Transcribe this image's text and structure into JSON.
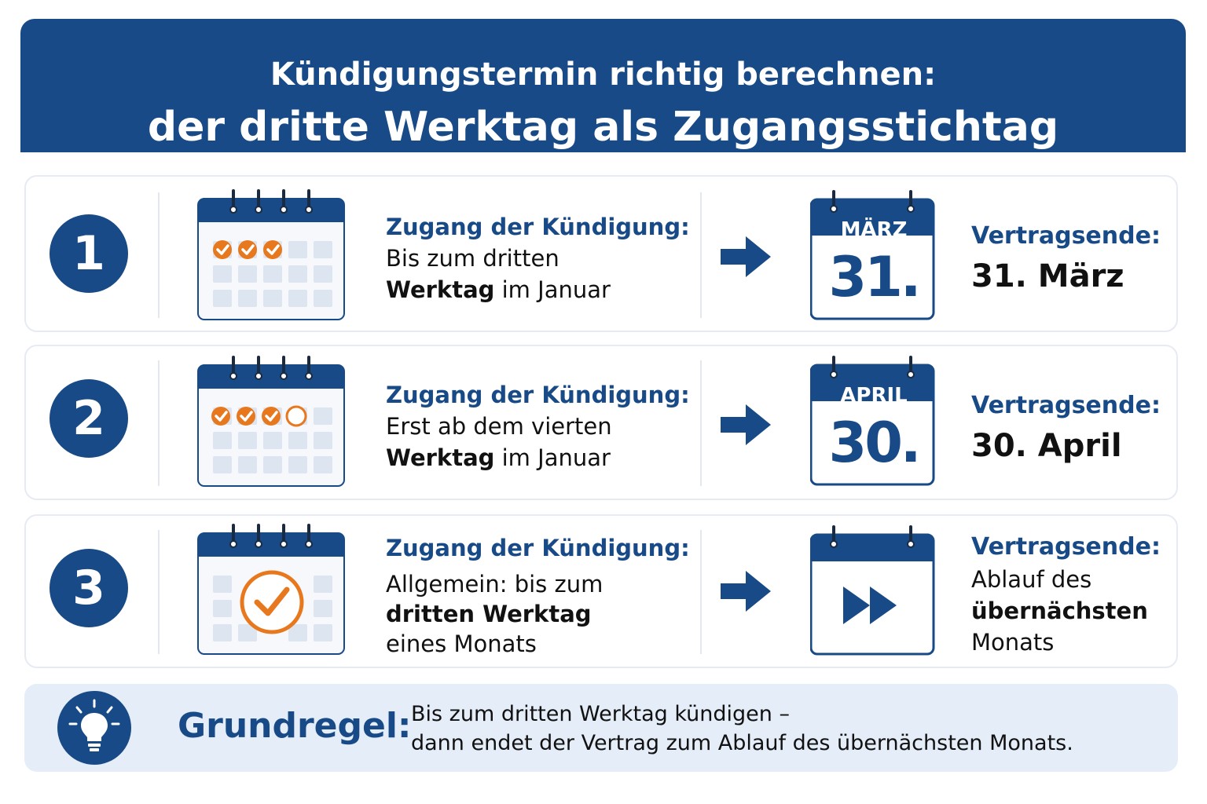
{
  "header": {
    "title_line1": "Kündigungstermin richtig berechnen:",
    "title_line2": "der dritte Werktag als Zugangsstichtag"
  },
  "rows": [
    {
      "number": "1",
      "access_heading": "Zugang der Kündigung:",
      "access_line1": "Bis zum dritten",
      "access_line2_bold": "Werktag",
      "access_line2_rest": " im Januar",
      "calendar_month": "MÄRZ",
      "calendar_day": "31.",
      "end_heading": "Vertragsende:",
      "end_value": "31. März",
      "checked_days": 3
    },
    {
      "number": "2",
      "access_heading": "Zugang der Kündigung:",
      "access_line1": "Erst ab dem vierten",
      "access_line2_bold": "Werktag",
      "access_line2_rest": " im Januar",
      "calendar_month": "APRIL",
      "calendar_day": "30.",
      "end_heading": "Vertragsende:",
      "end_value": "30. April",
      "checked_days": 3,
      "open_day": 1
    },
    {
      "number": "3",
      "access_heading": "Zugang der Kündigung:",
      "access_line1": "Allgemein: bis zum",
      "access_line2_bold": "dritten Werktag",
      "access_line3": "eines Monats",
      "end_heading": "Vertragsende:",
      "end_line1": "Ablauf des",
      "end_line2_bold": "übernächsten",
      "end_line3": "Monats"
    }
  ],
  "rule": {
    "title": "Grundregel:",
    "line1": "Bis zum dritten Werktag kündigen –",
    "line2": "dann endet der Vertrag zum Ablauf des übernächsten Monats."
  },
  "icons": {
    "row_calendar": "calendar-icon",
    "arrow": "arrow-right-icon",
    "fast_forward": "fast-forward-icon",
    "bulb": "lightbulb-icon"
  },
  "colors": {
    "primary": "#174a86",
    "accent": "#e8781e",
    "light_panel": "#e4edf8"
  }
}
